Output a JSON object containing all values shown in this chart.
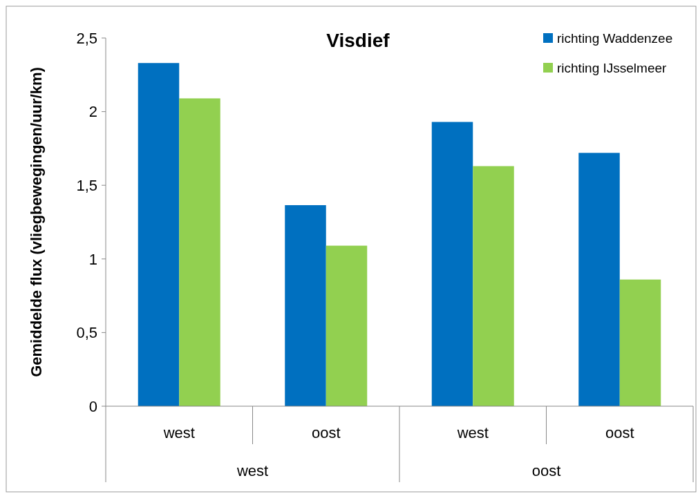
{
  "chart_data": {
    "type": "bar",
    "title": "Visdief",
    "ylabel": "Gemiddelde flux (vliegbewegingen/uur/km)",
    "categories": [
      "west",
      "oost",
      "west",
      "oost"
    ],
    "annotations": [
      "west",
      "oost"
    ],
    "series": [
      {
        "name": "richting Waddenzee",
        "color": "#0070c0",
        "values": [
          2.33,
          1.365,
          1.93,
          1.72
        ]
      },
      {
        "name": "richting IJsselmeer",
        "color": "#92d050",
        "values": [
          2.09,
          1.09,
          1.63,
          0.86
        ]
      }
    ],
    "ylim": [
      0,
      2.5
    ],
    "yticks": [
      0,
      {
        "value": 0.5,
        "label": "0,5"
      },
      1,
      {
        "value": 1.5,
        "label": "1,5"
      },
      2,
      {
        "value": 2.5,
        "label": "2,5"
      }
    ],
    "grid": false,
    "legend": "top right"
  }
}
